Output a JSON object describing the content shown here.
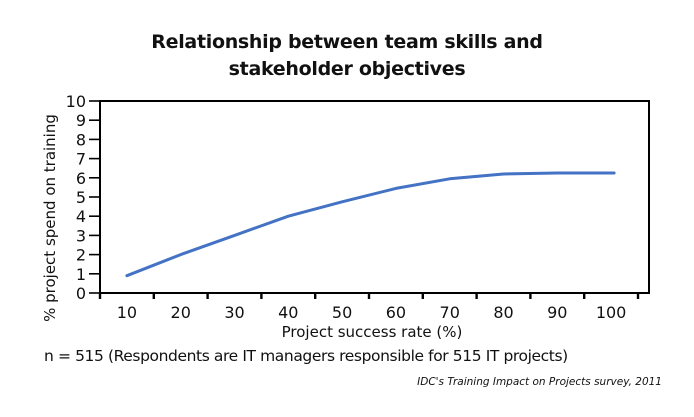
{
  "title": {
    "line1": "Relationship between team skills and",
    "line2": "stakeholder objectives"
  },
  "note": "n = 515 (Respondents are IT managers responsible for 515 IT projects)",
  "source": "IDC's Training Impact on Projects survey, 2011",
  "colors": {
    "line": "#4472C4",
    "axis": "#000000",
    "text": "#111111"
  },
  "chart_data": {
    "type": "line",
    "title": "Relationship between team skills and stakeholder objectives",
    "xlabel": "Project success rate (%)",
    "ylabel": "% project spend on training",
    "categories": [
      "10",
      "20",
      "30",
      "40",
      "50",
      "60",
      "70",
      "80",
      "90",
      "100"
    ],
    "x": [
      10,
      20,
      30,
      40,
      50,
      60,
      70,
      80,
      90,
      100
    ],
    "series": [
      {
        "name": "% project spend on training",
        "values": [
          0.9,
          2.0,
          3.0,
          4.0,
          4.75,
          5.45,
          5.95,
          6.2,
          6.25,
          6.25
        ]
      }
    ],
    "ylim": [
      0,
      10
    ],
    "yticks": [
      0,
      1,
      2,
      3,
      4,
      5,
      6,
      7,
      8,
      9,
      10
    ],
    "grid": false,
    "legend": "none",
    "frame": "box"
  }
}
